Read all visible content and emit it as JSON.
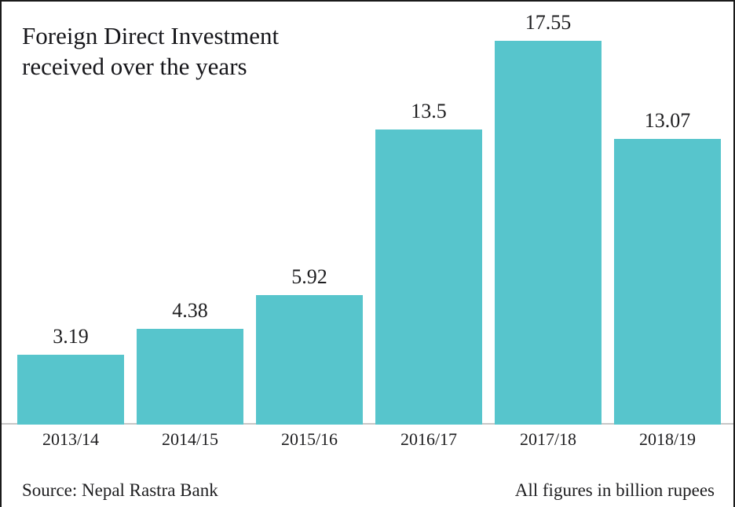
{
  "title": {
    "line1": "Foreign Direct Investment",
    "line2": "received over the years"
  },
  "footer": {
    "source": "Source: Nepal Rastra Bank",
    "note": "All figures in billion rupees"
  },
  "colors": {
    "bar": "#57C5CC",
    "text": "#1d1d1f",
    "axis_line": "#c6c6c6",
    "frame_border": "#1a1a1a"
  },
  "chart_data": {
    "type": "bar",
    "title": "Foreign Direct Investment received over the years",
    "categories": [
      "2013/14",
      "2014/15",
      "2015/16",
      "2016/17",
      "2017/18",
      "2018/19"
    ],
    "values": [
      3.19,
      4.38,
      5.92,
      13.5,
      17.55,
      13.07
    ],
    "value_labels": [
      "3.19",
      "4.38",
      "5.92",
      "13.5",
      "17.55",
      "13.07"
    ],
    "xlabel": "",
    "ylabel": "",
    "unit": "billion rupees",
    "source": "Nepal Rastra Bank",
    "ylim": [
      0,
      17.55
    ],
    "grid": false,
    "legend": "none",
    "data_labels": "above-bars",
    "axis_ticks": "x-only"
  }
}
